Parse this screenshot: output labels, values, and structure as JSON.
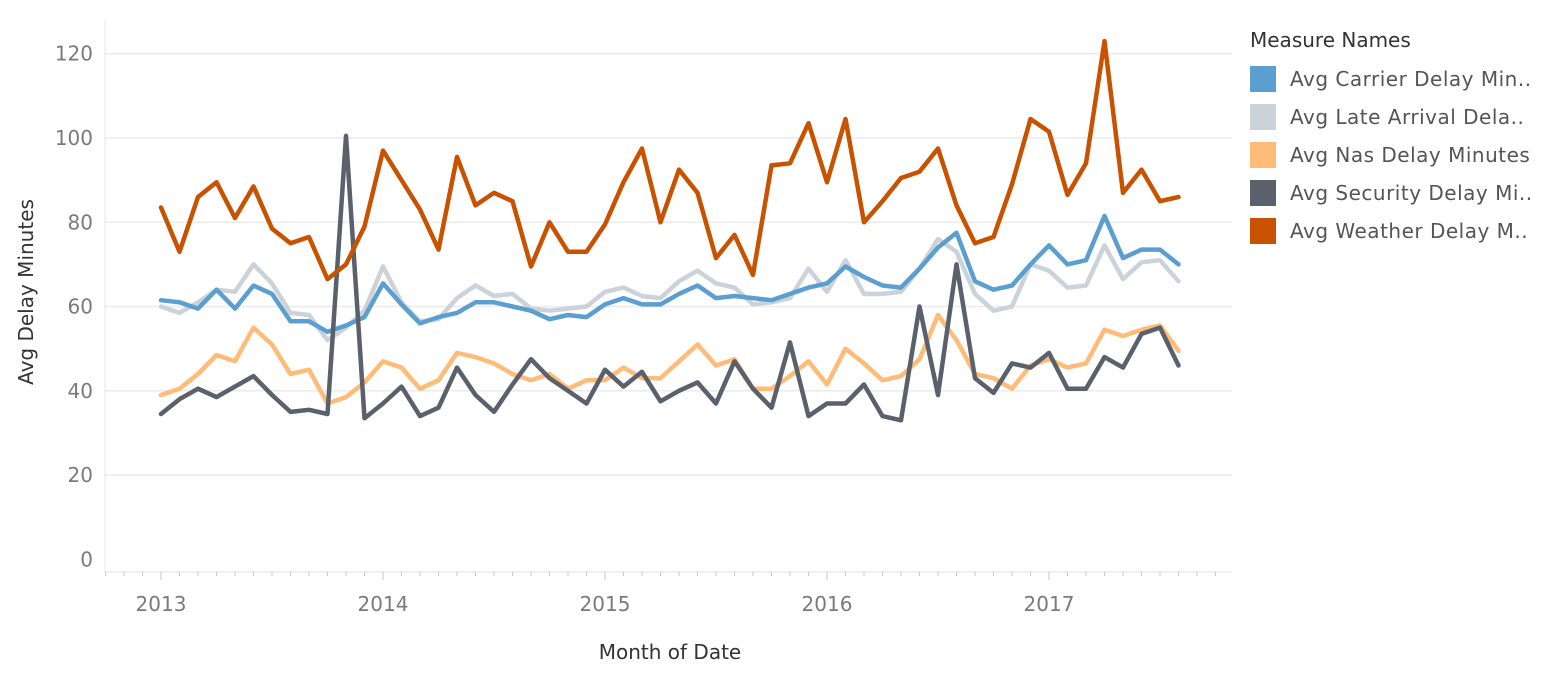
{
  "chart_data": {
    "type": "line",
    "xlabel": "Month of Date",
    "ylabel": "Avg Delay Minutes",
    "x_tick_labels": [
      "2013",
      "2014",
      "2015",
      "2016",
      "2017"
    ],
    "y_ticks": [
      0,
      20,
      40,
      60,
      80,
      100,
      120
    ],
    "ylim": [
      -3,
      128
    ],
    "x_start": "2013-01",
    "x_end": "2017-08",
    "grid": "horizontal",
    "legend": {
      "title": "Measure Names",
      "position": "right",
      "entries": [
        {
          "label": "Avg Carrier Delay Min..",
          "color": "#5b9fd0"
        },
        {
          "label": "Avg Late Arrival Dela..",
          "color": "#ccd2da"
        },
        {
          "label": "Avg Nas Delay Minutes",
          "color": "#ffbb78"
        },
        {
          "label": "Avg Security Delay Mi..",
          "color": "#5a606c"
        },
        {
          "label": "Avg Weather Delay M..",
          "color": "#c85200"
        }
      ]
    },
    "series": [
      {
        "color": "#ccd2da",
        "values": [
          60,
          58.5,
          61,
          64,
          63.5,
          70,
          65.5,
          58.5,
          58,
          52,
          55,
          59,
          69.5,
          61,
          56.5,
          57,
          62,
          65,
          62.5,
          63,
          59.5,
          59,
          59.5,
          60,
          63.5,
          64.5,
          62.5,
          62,
          66,
          68.5,
          65.5,
          64.5,
          60.5,
          61,
          62,
          69,
          63.5,
          71,
          63,
          63,
          63.5,
          69,
          76,
          73,
          63,
          59,
          60,
          70,
          68.5,
          64.5,
          65,
          74.5,
          66.5,
          70.5,
          71,
          66
        ]
      },
      {
        "color": "#5b9fd0",
        "values": [
          61.5,
          61,
          59.5,
          64,
          59.5,
          65,
          63,
          56.5,
          56.5,
          54,
          55.5,
          57.5,
          65.5,
          60.5,
          56,
          57.5,
          58.5,
          61,
          61,
          60,
          59,
          57,
          58,
          57.5,
          60.5,
          62,
          60.5,
          60.5,
          63,
          65,
          62,
          62.5,
          62,
          61.5,
          63,
          64.5,
          65.5,
          69.5,
          67,
          65,
          64.5,
          69,
          74,
          77.5,
          66,
          64,
          65,
          70,
          74.5,
          70,
          71,
          81.5,
          71.5,
          73.5,
          73.5,
          70
        ]
      },
      {
        "color": "#ffbb78",
        "values": [
          39,
          40.5,
          44,
          48.5,
          47,
          55,
          51,
          44,
          45,
          37,
          38.5,
          42,
          47,
          45.5,
          40.5,
          42.5,
          49,
          48,
          46.5,
          44,
          42.5,
          44,
          40.5,
          42.5,
          42.5,
          45.5,
          43,
          43,
          47,
          51,
          46,
          47.5,
          40.5,
          40.5,
          43.5,
          47,
          41.5,
          50,
          46.5,
          42.5,
          43.5,
          47.5,
          58,
          52,
          44,
          43,
          40.5,
          46,
          47.5,
          45.5,
          46.5,
          54.5,
          53,
          54.5,
          55.5,
          49.5
        ]
      },
      {
        "color": "#5a606c",
        "values": [
          34.5,
          38,
          40.5,
          38.5,
          41,
          43.5,
          39,
          35,
          35.5,
          34.5,
          100.5,
          33.5,
          37,
          41,
          34,
          36,
          45.5,
          39,
          35,
          41.5,
          47.5,
          43,
          40,
          37,
          45,
          41,
          44.5,
          37.5,
          40,
          42,
          37,
          47,
          40.5,
          36,
          51.5,
          34,
          37,
          37,
          41.5,
          34,
          33,
          60,
          39,
          70,
          43,
          39.5,
          46.5,
          45.5,
          49,
          40.5,
          40.5,
          48,
          45.5,
          53.5,
          55,
          46
        ]
      },
      {
        "color": "#c85200",
        "values": [
          83.5,
          73,
          86,
          89.5,
          81,
          88.5,
          78.5,
          75,
          76.5,
          66.5,
          70,
          79,
          97,
          90,
          83,
          73.5,
          95.5,
          84,
          87,
          85,
          69.5,
          80,
          73,
          73,
          79.5,
          89.5,
          97.5,
          80,
          92.5,
          87,
          71.5,
          77,
          67.5,
          93.5,
          94,
          103.5,
          89.5,
          104.5,
          80,
          85,
          90.5,
          92,
          97.5,
          84,
          75,
          76.5,
          89,
          104.5,
          101.5,
          86.5,
          94,
          123,
          87,
          92.5,
          85,
          86
        ]
      }
    ]
  }
}
